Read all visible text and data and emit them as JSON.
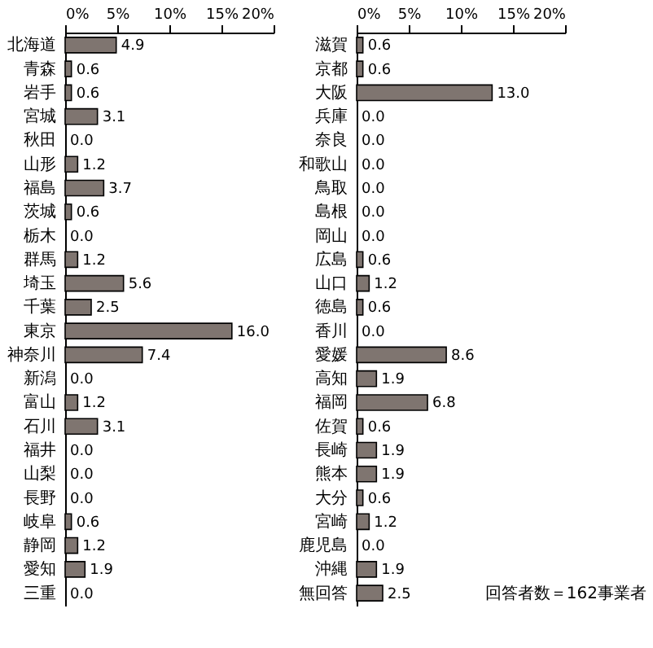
{
  "chart_data": [
    {
      "type": "bar",
      "orientation": "horizontal",
      "categories": [
        "北海道",
        "青森",
        "岩手",
        "宮城",
        "秋田",
        "山形",
        "福島",
        "茨城",
        "栃木",
        "群馬",
        "埼玉",
        "千葉",
        "東京",
        "神奈川",
        "新潟",
        "富山",
        "石川",
        "福井",
        "山梨",
        "長野",
        "岐阜",
        "静岡",
        "愛知",
        "三重"
      ],
      "values": [
        4.9,
        0.6,
        0.6,
        3.1,
        0.0,
        1.2,
        3.7,
        0.6,
        0.0,
        1.2,
        5.6,
        2.5,
        16.0,
        7.4,
        0.0,
        1.2,
        3.1,
        0.0,
        0.0,
        0.0,
        0.6,
        1.2,
        1.9,
        0.0
      ],
      "value_labels": [
        "4.9",
        "0.6",
        "0.6",
        "3.1",
        "0.0",
        "1.2",
        "3.7",
        "0.6",
        "0.0",
        "1.2",
        "5.6",
        "2.5",
        "16.0",
        "7.4",
        "0.0",
        "1.2",
        "3.1",
        "0.0",
        "0.0",
        "0.0",
        "0.6",
        "1.2",
        "1.9",
        "0.0"
      ],
      "color": "#7f7570",
      "xlim": [
        0,
        20
      ],
      "xticks": [
        {
          "value": 0,
          "label": "0%"
        },
        {
          "value": 5,
          "label": "5%"
        },
        {
          "value": 10,
          "label": "10%"
        },
        {
          "value": 15,
          "label": "15%"
        },
        {
          "value": 20,
          "label": "20%"
        }
      ],
      "grid": false
    },
    {
      "type": "bar",
      "orientation": "horizontal",
      "categories": [
        "滋賀",
        "京都",
        "大阪",
        "兵庫",
        "奈良",
        "和歌山",
        "鳥取",
        "島根",
        "岡山",
        "広島",
        "山口",
        "徳島",
        "香川",
        "愛媛",
        "高知",
        "福岡",
        "佐賀",
        "長崎",
        "熊本",
        "大分",
        "宮崎",
        "鹿児島",
        "沖縄",
        "無回答"
      ],
      "values": [
        0.6,
        0.6,
        13.0,
        0.0,
        0.0,
        0.0,
        0.0,
        0.0,
        0.0,
        0.6,
        1.2,
        0.6,
        0.0,
        8.6,
        1.9,
        6.8,
        0.6,
        1.9,
        1.9,
        0.6,
        1.2,
        0.0,
        1.9,
        2.5
      ],
      "value_labels": [
        "0.6",
        "0.6",
        "13.0",
        "0.0",
        "0.0",
        "0.0",
        "0.0",
        "0.0",
        "0.0",
        "0.6",
        "1.2",
        "0.6",
        "0.0",
        "8.6",
        "1.9",
        "6.8",
        "0.6",
        "1.9",
        "1.9",
        "0.6",
        "1.2",
        "0.0",
        "1.9",
        "2.5"
      ],
      "color": "#7f7570",
      "xlim": [
        0,
        20
      ],
      "xticks": [
        {
          "value": 0,
          "label": "0%"
        },
        {
          "value": 5,
          "label": "5%"
        },
        {
          "value": 10,
          "label": "10%"
        },
        {
          "value": 15,
          "label": "15%"
        },
        {
          "value": 20,
          "label": "20%"
        }
      ],
      "grid": false,
      "annotations": [
        "回答者数＝162事業者"
      ]
    }
  ]
}
